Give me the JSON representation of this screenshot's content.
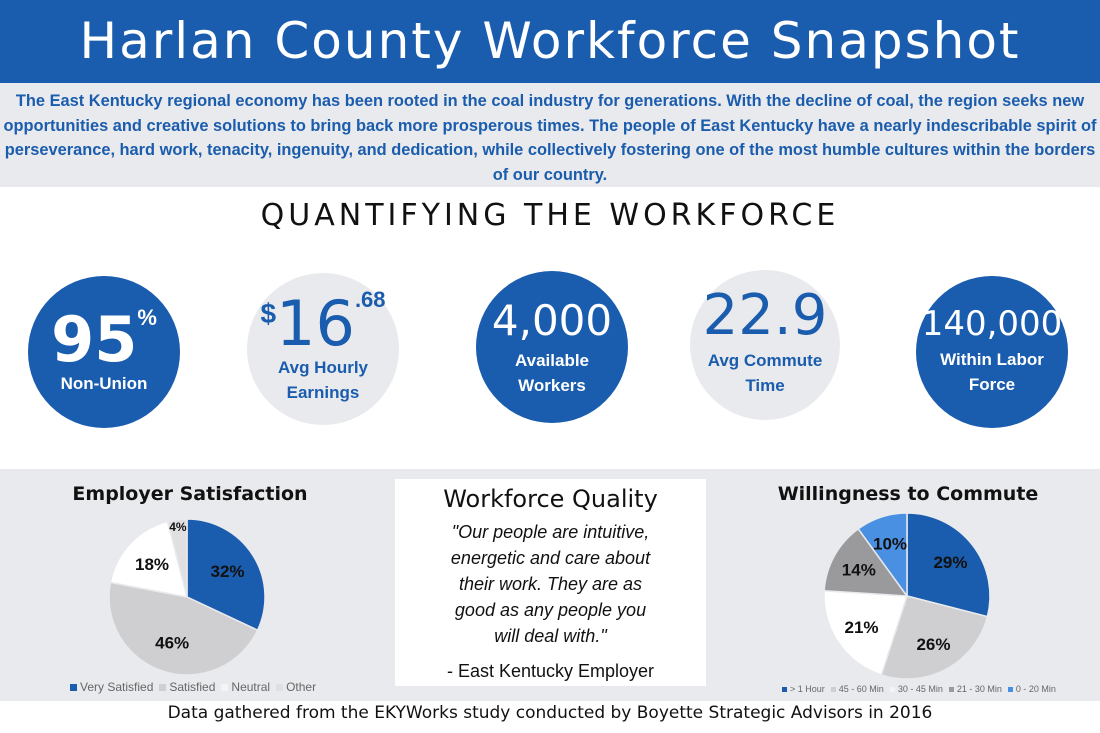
{
  "header": {
    "title": "Harlan County Workforce Snapshot"
  },
  "intro": {
    "text": "The East Kentucky regional economy has been rooted in the coal industry for generations. With the decline of coal, the region seeks new opportunities and creative solutions to bring back more prosperous times. The people of East Kentucky have a nearly indescribable spirit of perseverance, hard work, tenacity, ingenuity, and dedication, while collectively fostering one of the most humble cultures within the borders of our country."
  },
  "section": {
    "title": "QUANTIFYING THE WORKFORCE"
  },
  "stats": {
    "nonunion": {
      "value": "95",
      "sup": "%",
      "label": "Non-Union"
    },
    "earnings": {
      "prefix": "$",
      "value": "16",
      "sup": ".68",
      "label1": "Avg Hourly",
      "label2": "Earnings"
    },
    "workers": {
      "value": "4,000",
      "label1": "Available",
      "label2": "Workers"
    },
    "commute": {
      "value": "22.9",
      "label1": "Avg Commute",
      "label2": "Time"
    },
    "laborforce": {
      "value": "140,000",
      "label1": "Within Labor",
      "label2": "Force"
    }
  },
  "quality": {
    "title": "Workforce Quality",
    "quote": [
      "\"Our people are intuitive,",
      "energetic and care about",
      "their work. They are as",
      "good as any people you",
      "will deal with.\""
    ],
    "attribution": "- East Kentucky Employer"
  },
  "footer": {
    "text": "Data gathered from the EKYWorks study conducted by Boyette Strategic Advisors in 2016"
  },
  "colors": {
    "brand_blue": "#1a5cad",
    "light_gray": "#e9eaed"
  },
  "chart_data": [
    {
      "type": "pie",
      "title": "Employer Satisfaction",
      "categories": [
        "Very Satisfied",
        "Satisfied",
        "Neutral",
        "Other"
      ],
      "values": [
        32,
        46,
        18,
        4
      ],
      "labels": [
        "32%",
        "46%",
        "18%",
        "4%"
      ],
      "colors": [
        "#1a5cad",
        "#cfcfd1",
        "#ffffff",
        "#e0e0e0"
      ],
      "legend": "bottom"
    },
    {
      "type": "pie",
      "title": "Willingness to Commute",
      "categories": [
        "> 1 Hour",
        "45 - 60 Min",
        "30 - 45 Min",
        "21 - 30 Min",
        "0 - 20 Min"
      ],
      "values": [
        29,
        26,
        21,
        14,
        10
      ],
      "labels": [
        "29%",
        "26%",
        "21%",
        "14%",
        "10%"
      ],
      "colors": [
        "#1a5cad",
        "#cfcfd1",
        "#ffffff",
        "#9a9a9c",
        "#4a90e2"
      ],
      "legend": "bottom"
    }
  ]
}
